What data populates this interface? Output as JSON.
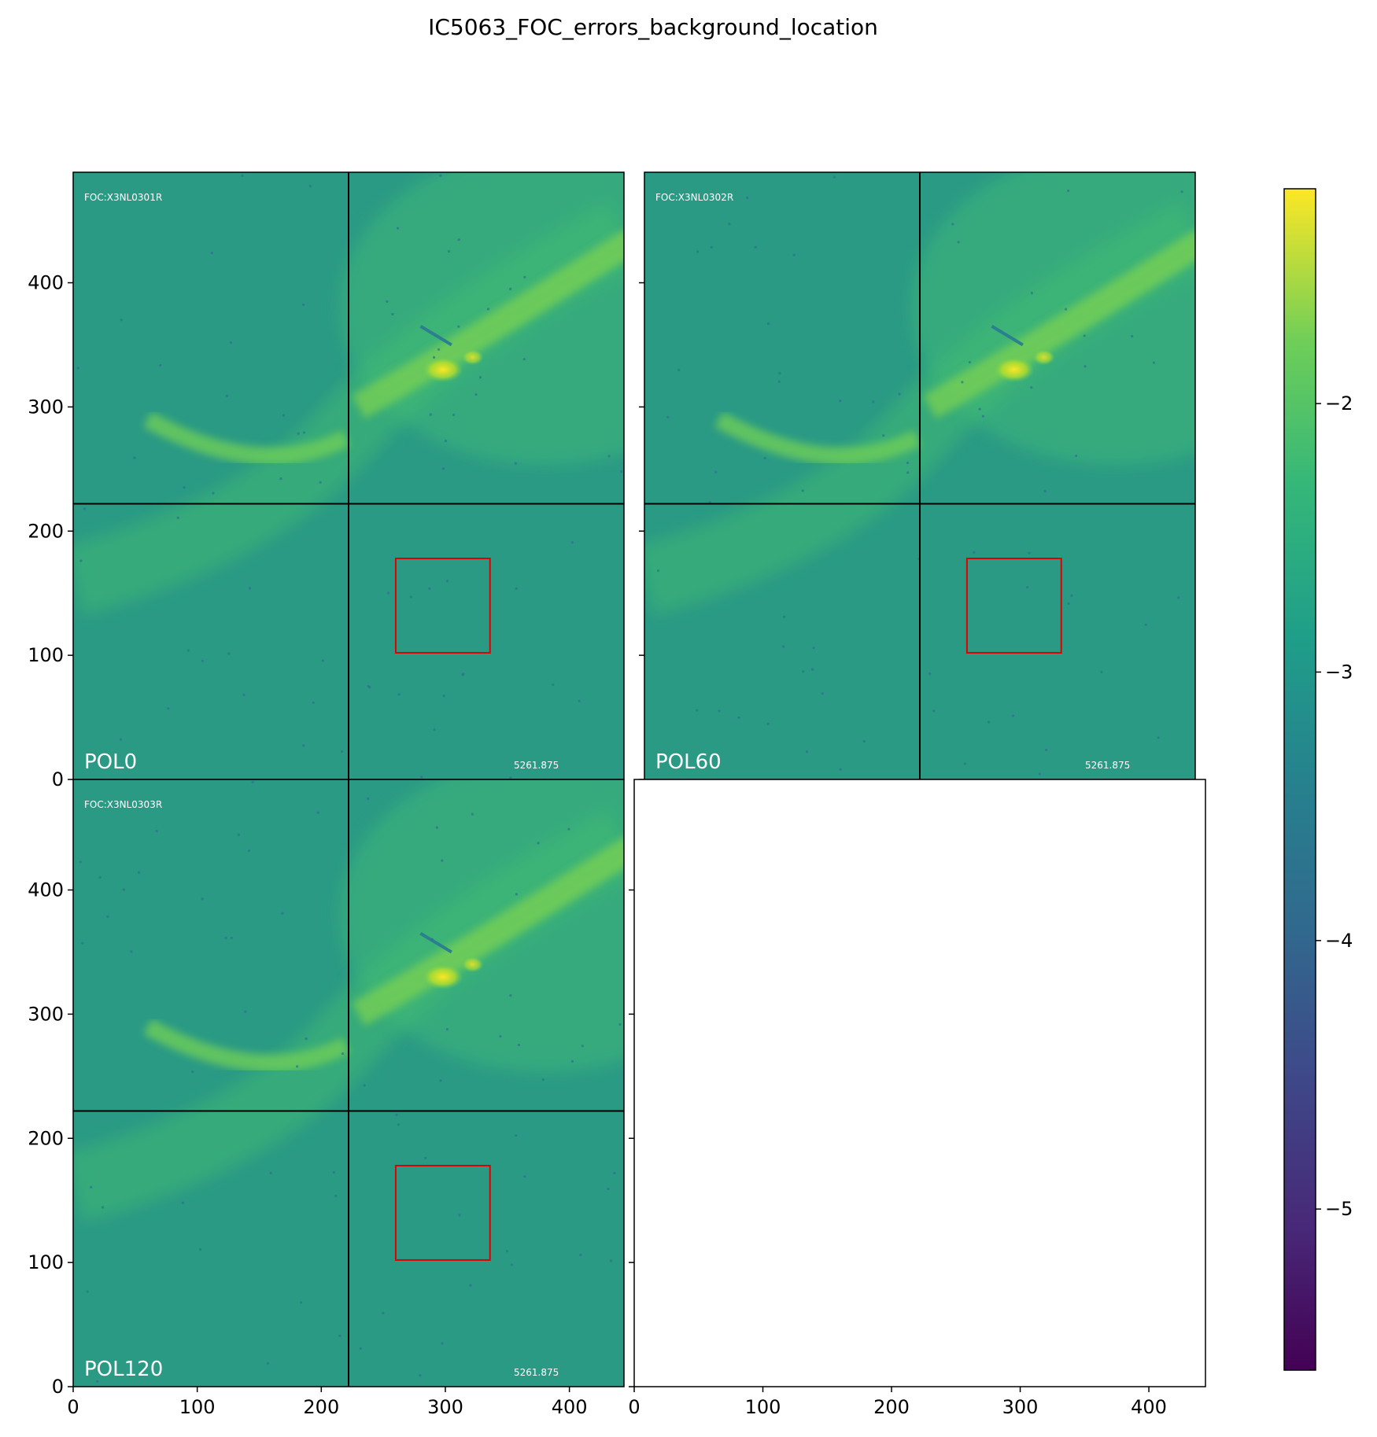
{
  "title": "IC5063_FOC_errors_background_location",
  "colors": {
    "background_green": "#2a9a84",
    "box_red": "#e00000",
    "grid_black": "#000000"
  },
  "chart_data": {
    "type": "heatmap",
    "title": "IC5063_FOC_errors_background_location",
    "colorbar": {
      "colormap": "viridis",
      "range": [
        -5.6,
        -1.2
      ],
      "ticks": [
        -2,
        -3,
        -4,
        -5
      ],
      "tick_labels": [
        "−2",
        "−3",
        "−4",
        "−5"
      ]
    },
    "panels": [
      {
        "label": "POL0",
        "image_id": "FOC:X3NL0301R",
        "value_label": "5261.875",
        "xlim": [
          0,
          444
        ],
        "ylim": [
          0,
          489
        ],
        "x_ticks": [],
        "y_ticks": [
          0,
          100,
          200,
          300,
          400
        ],
        "background_box": {
          "x": [
            260,
            336
          ],
          "y": [
            102,
            178
          ]
        },
        "divider_x": 222,
        "divider_y": 222
      },
      {
        "label": "POL60",
        "image_id": "FOC:X3NL0302R",
        "value_label": "5261.875",
        "xlim": [
          0,
          444
        ],
        "ylim": [
          0,
          489
        ],
        "x_ticks": [],
        "y_ticks": [],
        "background_box": {
          "x": [
            260,
            336
          ],
          "y": [
            102,
            178
          ]
        },
        "divider_x": 222,
        "divider_y": 222
      },
      {
        "label": "POL120",
        "image_id": "FOC:X3NL0303R",
        "value_label": "5261.875",
        "xlim": [
          0,
          444
        ],
        "ylim": [
          0,
          489
        ],
        "x_ticks": [
          0,
          100,
          200,
          300,
          400
        ],
        "y_ticks": [
          0,
          100,
          200,
          300,
          400
        ],
        "background_box": {
          "x": [
            260,
            336
          ],
          "y": [
            102,
            178
          ]
        },
        "divider_x": 222,
        "divider_y": 222
      },
      {
        "label": "",
        "image_id": "",
        "value_label": "",
        "xlim": [
          0,
          444
        ],
        "ylim": [
          0,
          489
        ],
        "x_ticks": [
          0,
          100,
          200,
          300,
          400
        ],
        "y_ticks": [],
        "empty": true
      }
    ]
  }
}
